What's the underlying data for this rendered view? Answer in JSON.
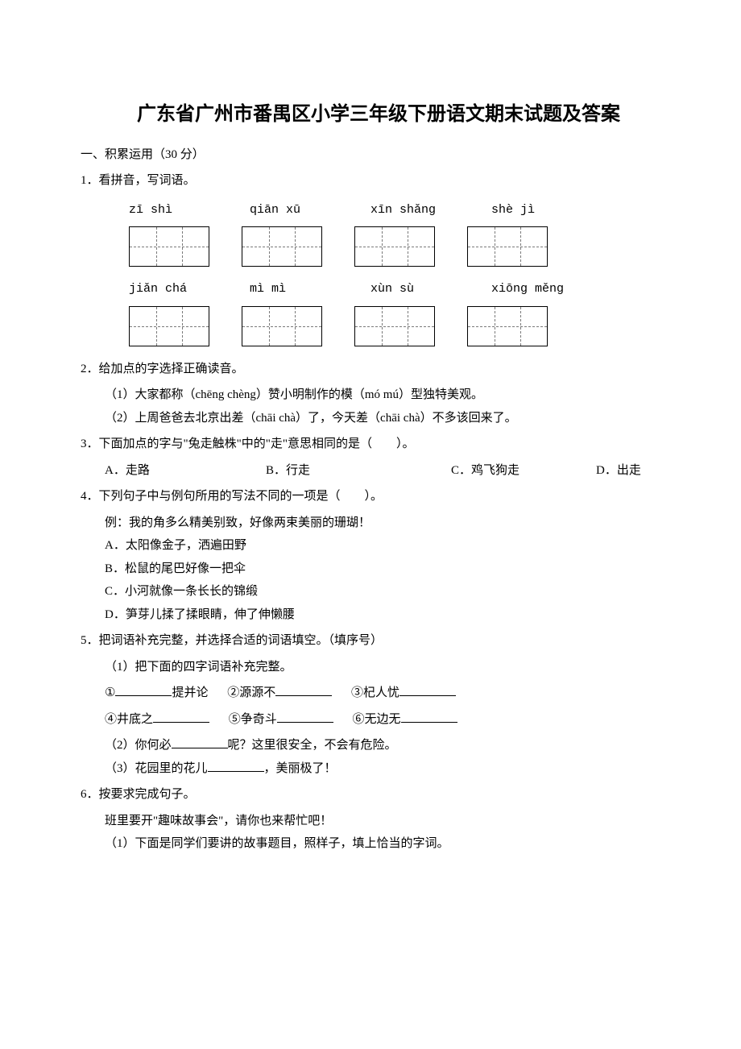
{
  "title": "广东省广州市番禺区小学三年级下册语文期末试题及答案",
  "section1": "一、积累运用（30 分）",
  "q1": {
    "stem": "1．看拼音，写词语。",
    "row1": [
      "zī shì",
      "qiān xū",
      "xīn shǎng",
      "shè jì"
    ],
    "row2": [
      "jiǎn chá",
      "mì mì",
      "xùn sù",
      "xiōng měng"
    ]
  },
  "q2": {
    "stem": "2．给加点的字选择正确读音。",
    "a": "（1）大家都称（chēng chèng）赞小明制作的模（mó mú）型独特美观。",
    "b": "（2）上周爸爸去北京出差（chāi chà）了，今天差（chāi chà）不多该回来了。"
  },
  "q3": {
    "stem": "3．下面加点的字与\"兔走触株\"中的\"走\"意思相同的是（　　）。",
    "opts": {
      "a": "A．走路",
      "b": "B．行走",
      "c": "C．鸡飞狗走",
      "d": "D．出走"
    }
  },
  "q4": {
    "stem": "4．下列句子中与例句所用的写法不同的一项是（　　）。",
    "ex": "例：我的角多么精美别致，好像两束美丽的珊瑚！",
    "a": "A．太阳像金子，洒遍田野",
    "b": "B．松鼠的尾巴好像一把伞",
    "c": "C．小河就像一条长长的锦缎",
    "d": "D．笋芽儿揉了揉眼睛，伸了伸懒腰"
  },
  "q5": {
    "stem": "5．把词语补充完整，并选择合适的词语填空。（填序号）",
    "p1": "（1）把下面的四字词语补充完整。",
    "i1a": "①",
    "i1b": "提并论",
    "i2a": "②源源不",
    "i3a": "③杞人忧",
    "i4a": "④井底之",
    "i5a": "⑤争奇斗",
    "i6a": "⑥无边无",
    "p2a": "（2）你何必",
    "p2b": "呢？这里很安全，不会有危险。",
    "p3a": "（3）花园里的花儿",
    "p3b": "，美丽极了！"
  },
  "q6": {
    "stem": "6．按要求完成句子。",
    "intro": "班里要开\"趣味故事会\"，请你也来帮忙吧！",
    "p1": "（1）下面是同学们要讲的故事题目，照样子，填上恰当的字词。"
  }
}
